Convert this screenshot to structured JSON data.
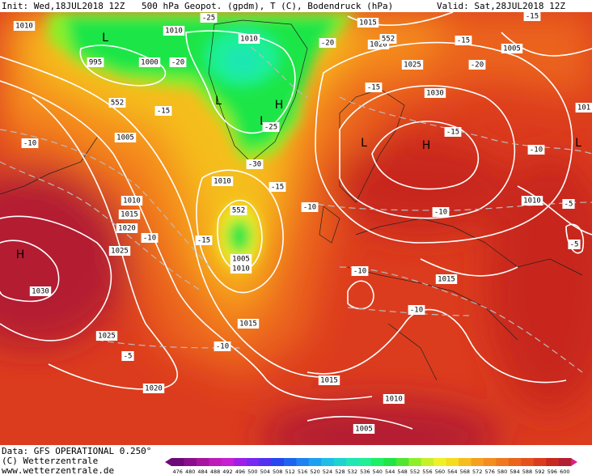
{
  "header": {
    "init": "Init: Wed,18JUL2018 12Z",
    "title": "500 hPa Geopot. (gpdm), T (C), Bodendruck (hPa)",
    "valid": "Valid: Sat,28JUL2018 12Z"
  },
  "pressure_centers": [
    "L",
    "L",
    "H",
    "L",
    "H",
    "L",
    "L",
    "H"
  ],
  "contour_labels": [
    "1010",
    "1010",
    "1010",
    "995",
    "1000",
    "1015",
    "1020",
    "1025",
    "1030",
    "1005",
    "1005",
    "1010",
    "1010",
    "1015",
    "1020",
    "1025",
    "1030",
    "1005",
    "1010",
    "1015",
    "1025",
    "1020",
    "1015",
    "1010",
    "1005",
    "1015",
    "1010",
    "101",
    "-25",
    "-20",
    "-20",
    "-15",
    "-25",
    "-30",
    "-15",
    "-10",
    "-15",
    "-10",
    "-15",
    "-15",
    "-15",
    "-20",
    "-15",
    "-10",
    "-10",
    "-10",
    "-5",
    "-5",
    "-10",
    "-10",
    "-10",
    "-5",
    "552",
    "552",
    "552"
  ],
  "footer": {
    "data": "Data: GFS OPERATIONAL 0.250°",
    "copyright": "(C) Wetterzentrale",
    "url": "www.wetterzentrale.de"
  },
  "color_scale": {
    "values": [
      476,
      480,
      484,
      488,
      492,
      496,
      500,
      504,
      508,
      512,
      516,
      520,
      524,
      528,
      532,
      536,
      540,
      544,
      548,
      552,
      556,
      560,
      564,
      568,
      572,
      576,
      580,
      584,
      588,
      592,
      596,
      600
    ],
    "colors": [
      "#6e0a78",
      "#8a0f8c",
      "#a614a0",
      "#bf1bb8",
      "#c81ed2",
      "#a01ee6",
      "#7828f0",
      "#5032f0",
      "#2846f0",
      "#1e64f0",
      "#1e82f0",
      "#1ea0f0",
      "#1ebee6",
      "#1ed2d2",
      "#1ee6b4",
      "#1ef096",
      "#1ef064",
      "#1ee646",
      "#50e632",
      "#8cf028",
      "#c8f028",
      "#f0f028",
      "#f5dc1e",
      "#f5be1e",
      "#f5a01e",
      "#f58c1e",
      "#f0781e",
      "#eb641e",
      "#e6501e",
      "#dc3c1e",
      "#c8281e",
      "#b41e32"
    ]
  }
}
